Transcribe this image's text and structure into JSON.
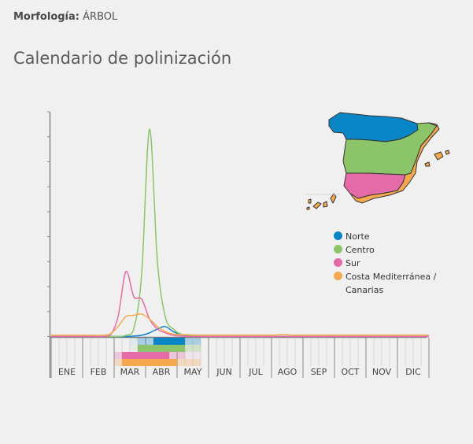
{
  "header": {
    "morphology_label": "Morfología:",
    "morphology_value": "ÁRBOL",
    "title": "Calendario de polinización"
  },
  "legend": [
    {
      "name": "Norte",
      "color": "#0a86c6"
    },
    {
      "name": "Centro",
      "color": "#8cc46a"
    },
    {
      "name": "Sur",
      "color": "#e46aa8"
    },
    {
      "name": "Costa Mediterránea / Canarias",
      "color": "#f5a84e"
    }
  ],
  "months": [
    "ENE",
    "FEB",
    "MAR",
    "ABR",
    "MAY",
    "JUN",
    "JUL",
    "AGO",
    "SEP",
    "OCT",
    "NOV",
    "DIC"
  ],
  "chart_data": {
    "type": "line",
    "title": "Calendario de polinización",
    "xlabel": "",
    "ylabel": "",
    "x_unit": "week",
    "categories": [
      "ENE",
      "FEB",
      "MAR",
      "ABR",
      "MAY",
      "JUN",
      "JUL",
      "AGO",
      "SEP",
      "OCT",
      "NOV",
      "DIC"
    ],
    "y_ticks_count": 9,
    "ylim": [
      0,
      9
    ],
    "series": [
      {
        "name": "Norte",
        "color": "#0a86c6",
        "peak_week": 14,
        "peak": 0.4,
        "weekly": [
          0,
          0,
          0,
          0,
          0,
          0,
          0,
          0,
          0,
          0,
          0.02,
          0.05,
          0.15,
          0.3,
          0.4,
          0.2,
          0.08,
          0.03,
          0.01,
          0,
          0,
          0,
          0,
          0,
          0,
          0,
          0,
          0,
          0,
          0,
          0,
          0,
          0,
          0,
          0,
          0,
          0,
          0,
          0,
          0,
          0,
          0,
          0,
          0,
          0,
          0,
          0,
          0
        ]
      },
      {
        "name": "Centro",
        "color": "#8cc46a",
        "peak_week": 12,
        "peak": 8.3,
        "weekly": [
          0,
          0,
          0,
          0,
          0,
          0,
          0,
          0,
          0,
          0.05,
          0.3,
          2.5,
          8.3,
          3.0,
          0.8,
          0.3,
          0.1,
          0.05,
          0.02,
          0,
          0,
          0,
          0,
          0,
          0,
          0,
          0,
          0,
          0,
          0,
          0,
          0,
          0,
          0,
          0,
          0,
          0,
          0,
          0,
          0,
          0,
          0,
          0,
          0,
          0,
          0,
          0,
          0
        ]
      },
      {
        "name": "Sur",
        "color": "#e46aa8",
        "peak_week": 9,
        "peak": 2.6,
        "weekly": [
          0,
          0,
          0,
          0,
          0,
          0,
          0,
          0.05,
          0.8,
          2.6,
          1.6,
          1.5,
          0.7,
          0.3,
          0.15,
          0.05,
          0.02,
          0,
          0,
          0,
          0,
          0,
          0,
          0,
          0,
          0,
          0,
          0,
          0,
          0,
          0,
          0,
          0,
          0,
          0,
          0,
          0,
          0,
          0,
          0,
          0,
          0,
          0,
          0,
          0,
          0,
          0,
          0
        ]
      },
      {
        "name": "Costa Mediterránea / Canarias",
        "color": "#f5a84e",
        "peak_week": 11,
        "peak": 0.9,
        "weekly": [
          0.05,
          0.05,
          0.05,
          0.05,
          0.05,
          0.05,
          0.05,
          0.1,
          0.4,
          0.8,
          0.85,
          0.9,
          0.7,
          0.4,
          0.2,
          0.1,
          0.08,
          0.07,
          0.06,
          0.06,
          0.06,
          0.06,
          0.06,
          0.06,
          0.06,
          0.06,
          0.06,
          0.06,
          0.06,
          0.08,
          0.06,
          0.06,
          0.06,
          0.06,
          0.06,
          0.06,
          0.06,
          0.06,
          0.06,
          0.06,
          0.06,
          0.06,
          0.06,
          0.06,
          0.06,
          0.06,
          0.06,
          0.06
        ]
      }
    ],
    "heatmap": {
      "note": "weekly intensity per region, 0=none,1=low,2=high",
      "rows": [
        {
          "name": "Norte",
          "start_week": 10,
          "levels": [
            0,
            1,
            1,
            2,
            2,
            2,
            2,
            1,
            1
          ]
        },
        {
          "name": "Centro",
          "start_week": 10,
          "levels": [
            0,
            2,
            2,
            2,
            2,
            2,
            2,
            1,
            1
          ]
        },
        {
          "name": "Sur",
          "start_week": 8,
          "levels": [
            1,
            2,
            2,
            2,
            2,
            2,
            2,
            1,
            1,
            0,
            0
          ]
        },
        {
          "name": "Costa Mediterránea / Canarias",
          "start_week": 8,
          "levels": [
            1,
            2,
            2,
            2,
            2,
            2,
            2,
            2,
            1,
            1,
            1
          ]
        }
      ]
    }
  }
}
